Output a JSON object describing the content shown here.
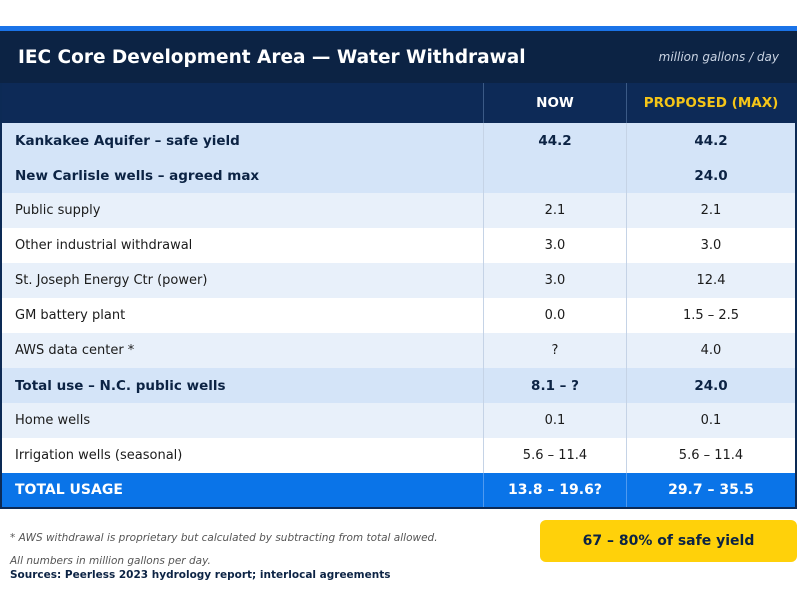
{
  "header": {
    "title": "IEC Core Development Area — Water Withdrawal",
    "unit": "million gallons / day"
  },
  "columns": {
    "label": "",
    "now": "NOW",
    "proposed": "PROPOSED (MAX)"
  },
  "rows": [
    {
      "label": "Kankakee Aquifer – safe yield",
      "now": "44.2",
      "proposed": "44.2",
      "style": "bold-blue"
    },
    {
      "label": "New Carlisle wells – agreed max",
      "now": "",
      "proposed": "24.0",
      "style": "bold-blue"
    },
    {
      "label": "Public supply",
      "now": "2.1",
      "proposed": "2.1",
      "style": "alt"
    },
    {
      "label": "Other industrial withdrawal",
      "now": "3.0",
      "proposed": "3.0",
      "style": "white"
    },
    {
      "label": "St. Joseph Energy Ctr (power)",
      "now": "3.0",
      "proposed": "12.4",
      "style": "alt"
    },
    {
      "label": "GM battery plant",
      "now": "0.0",
      "proposed": "1.5 – 2.5",
      "style": "white"
    },
    {
      "label": "AWS data center *",
      "now": "?",
      "proposed": "4.0",
      "style": "alt"
    },
    {
      "label": "Total use – N.C. public wells",
      "now": "8.1 – ?",
      "proposed": "24.0",
      "style": "bold-blue"
    },
    {
      "label": "Home wells",
      "now": "0.1",
      "proposed": "0.1",
      "style": "alt"
    },
    {
      "label": "Irrigation wells (seasonal)",
      "now": "5.6 – 11.4",
      "proposed": "5.6 – 11.4",
      "style": "white"
    }
  ],
  "total": {
    "label": "TOTAL USAGE",
    "now": "13.8 – 19.6?",
    "proposed": "29.7 – 35.5"
  },
  "badge": "67 – 80% of safe yield",
  "footnotes": {
    "aws": "* AWS withdrawal is proprietary but calculated by subtracting from total allowed.",
    "units": "All numbers in million gallons per day.",
    "sources": "Sources: Peerless 2023 hydrology report; interlocal agreements"
  },
  "colors": {
    "header_bg": "#0c2344",
    "accent_blue": "#0a74e8",
    "highlight_yellow": "#ffd10a",
    "proposed_header_text": "#f5c518"
  }
}
